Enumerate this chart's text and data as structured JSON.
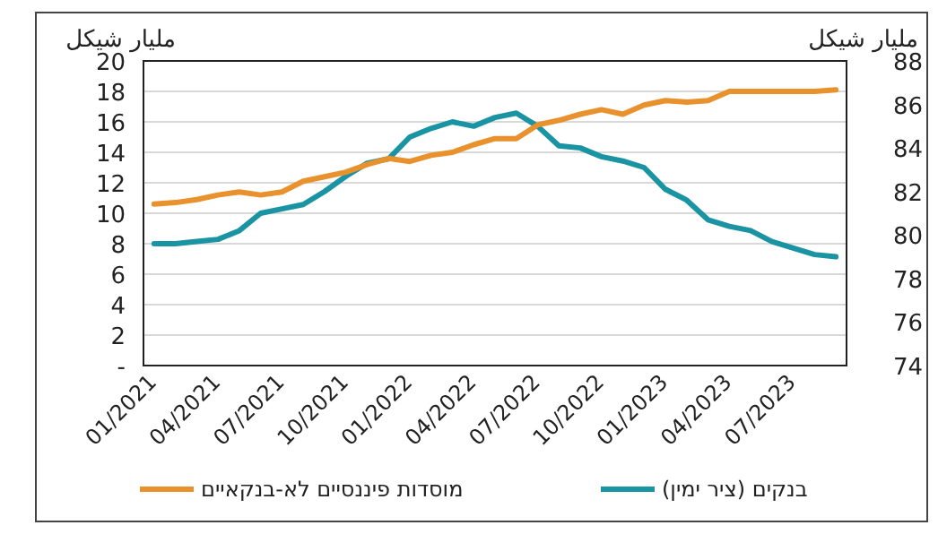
{
  "chart_data": {
    "type": "line",
    "categories": [
      "01/2021",
      null,
      null,
      "04/2021",
      null,
      null,
      "07/2021",
      null,
      null,
      "10/2021",
      null,
      null,
      "01/2022",
      null,
      null,
      "04/2022",
      null,
      null,
      "07/2022",
      null,
      null,
      "10/2022",
      null,
      null,
      "01/2023",
      null,
      null,
      "04/2023",
      null,
      null,
      "07/2023",
      null,
      null
    ],
    "series": [
      {
        "name": "בנקים (ציר ימין)",
        "color": "#1a93a3",
        "axis": "y2",
        "values": [
          79.6,
          79.6,
          79.7,
          79.8,
          80.2,
          81.0,
          81.2,
          81.4,
          82.0,
          82.7,
          83.3,
          83.5,
          84.5,
          84.9,
          85.2,
          85.0,
          85.4,
          85.6,
          85.0,
          84.1,
          84.0,
          83.6,
          83.4,
          83.1,
          82.1,
          81.6,
          80.7,
          80.4,
          80.2,
          79.7,
          79.4,
          79.1,
          79.0
        ]
      },
      {
        "name": "מוסדות פיננסיים לא-בנקאיים",
        "color": "#e8912d",
        "values": [
          10.6,
          10.7,
          10.9,
          11.2,
          11.4,
          11.2,
          11.4,
          12.1,
          12.4,
          12.7,
          13.2,
          13.6,
          13.4,
          13.8,
          14.0,
          14.5,
          14.9,
          14.9,
          15.8,
          16.1,
          16.5,
          16.8,
          16.5,
          17.1,
          17.4,
          17.3,
          17.4,
          18.0,
          18.0,
          18.0,
          18.0,
          18.0,
          18.1
        ]
      }
    ],
    "ylim": [
      0,
      20
    ],
    "yticks": [
      {
        "value": 0,
        "label": "-"
      },
      2,
      4,
      6,
      8,
      10,
      12,
      14,
      16,
      18,
      20
    ],
    "y2lim": [
      74,
      88
    ],
    "y2ticks": [
      74,
      76,
      78,
      80,
      82,
      84,
      86,
      88
    ],
    "ylabel": "مليار شيكل",
    "y2label": "مليار شيكل",
    "grid": "y",
    "legend": "bottom"
  }
}
